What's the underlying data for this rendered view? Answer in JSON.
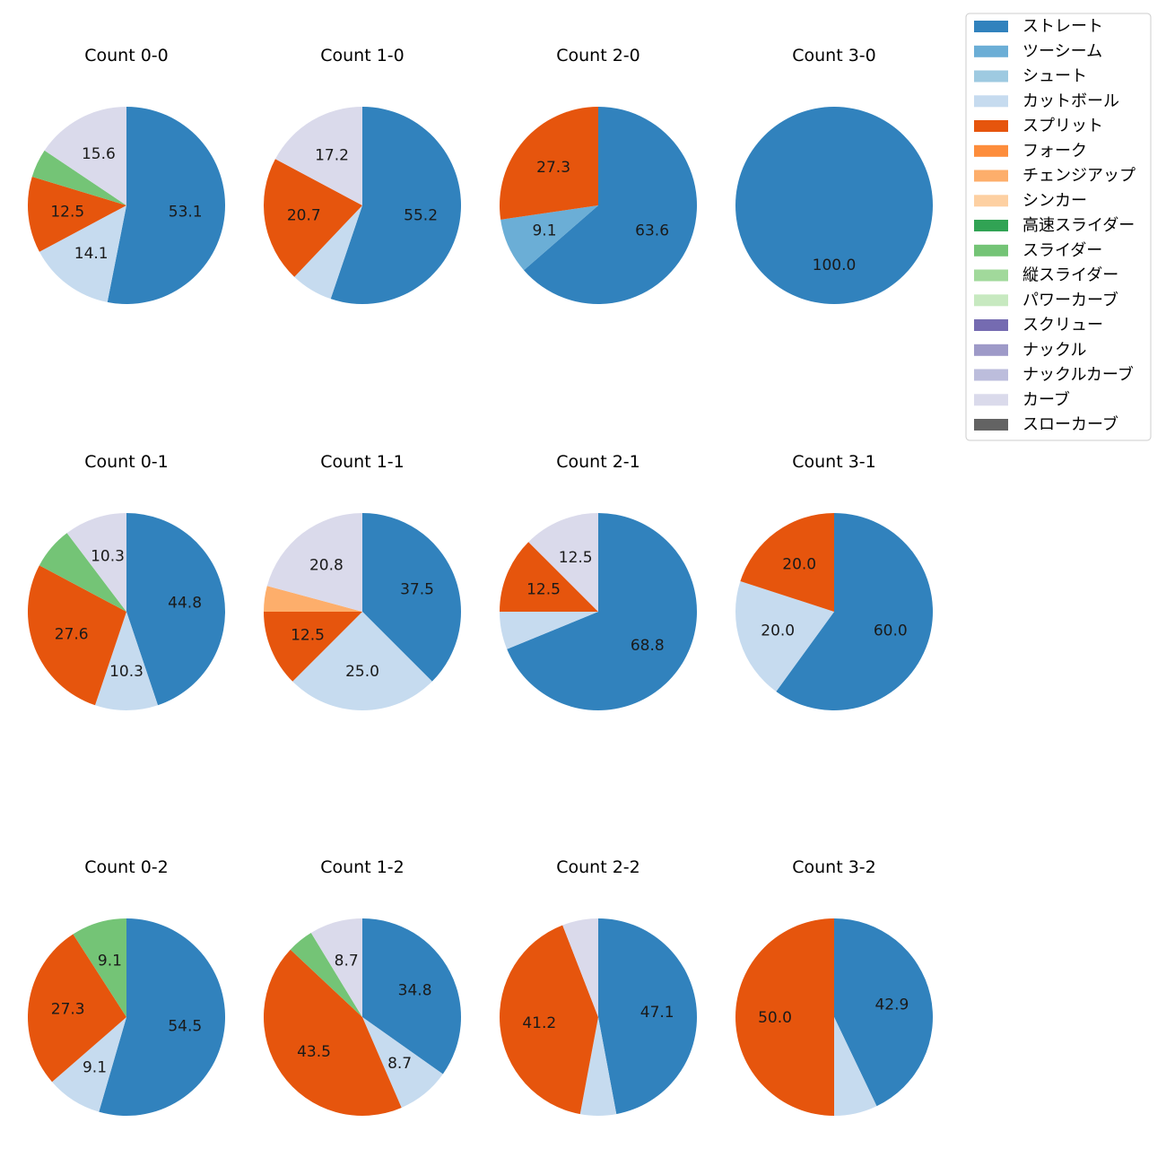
{
  "chart_data": {
    "type": "pie",
    "legend_position": "top-right",
    "legend": [
      {
        "name": "ストレート",
        "color": "#3182bd"
      },
      {
        "name": "ツーシーム",
        "color": "#6baed6"
      },
      {
        "name": "シュート",
        "color": "#9ecae1"
      },
      {
        "name": "カットボール",
        "color": "#c6dbef"
      },
      {
        "name": "スプリット",
        "color": "#e6550d"
      },
      {
        "name": "フォーク",
        "color": "#fd8d3c"
      },
      {
        "name": "チェンジアップ",
        "color": "#fdae6b"
      },
      {
        "name": "シンカー",
        "color": "#fdd0a2"
      },
      {
        "name": "高速スライダー",
        "color": "#31a354"
      },
      {
        "name": "スライダー",
        "color": "#74c476"
      },
      {
        "name": "縦スライダー",
        "color": "#a1d99b"
      },
      {
        "name": "パワーカーブ",
        "color": "#c7e9c0"
      },
      {
        "name": "スクリュー",
        "color": "#756bb1"
      },
      {
        "name": "ナックル",
        "color": "#9e9ac8"
      },
      {
        "name": "ナックルカーブ",
        "color": "#bcbddc"
      },
      {
        "name": "カーブ",
        "color": "#dadaeb"
      },
      {
        "name": "スローカーブ",
        "color": "#636363"
      }
    ],
    "pies": [
      {
        "title": "Count 0-0",
        "slices": [
          {
            "name": "ストレート",
            "value": 53.1,
            "label": "53.1"
          },
          {
            "name": "カットボール",
            "value": 14.1,
            "label": "14.1"
          },
          {
            "name": "スプリット",
            "value": 12.5,
            "label": "12.5"
          },
          {
            "name": "スライダー",
            "value": 4.7,
            "label": ""
          },
          {
            "name": "カーブ",
            "value": 15.6,
            "label": "15.6"
          }
        ]
      },
      {
        "title": "Count 1-0",
        "slices": [
          {
            "name": "ストレート",
            "value": 55.2,
            "label": "55.2"
          },
          {
            "name": "カットボール",
            "value": 6.9,
            "label": ""
          },
          {
            "name": "スプリット",
            "value": 20.7,
            "label": "20.7"
          },
          {
            "name": "カーブ",
            "value": 17.2,
            "label": "17.2"
          }
        ]
      },
      {
        "title": "Count 2-0",
        "slices": [
          {
            "name": "ストレート",
            "value": 63.6,
            "label": "63.6"
          },
          {
            "name": "ツーシーム",
            "value": 9.1,
            "label": "9.1"
          },
          {
            "name": "スプリット",
            "value": 27.3,
            "label": "27.3"
          }
        ]
      },
      {
        "title": "Count 3-0",
        "slices": [
          {
            "name": "ストレート",
            "value": 100.0,
            "label": "100.0"
          }
        ]
      },
      {
        "title": "Count 0-1",
        "slices": [
          {
            "name": "ストレート",
            "value": 44.8,
            "label": "44.8"
          },
          {
            "name": "カットボール",
            "value": 10.3,
            "label": "10.3"
          },
          {
            "name": "スプリット",
            "value": 27.6,
            "label": "27.6"
          },
          {
            "name": "スライダー",
            "value": 6.9,
            "label": ""
          },
          {
            "name": "カーブ",
            "value": 10.3,
            "label": "10.3"
          }
        ]
      },
      {
        "title": "Count 1-1",
        "slices": [
          {
            "name": "ストレート",
            "value": 37.5,
            "label": "37.5"
          },
          {
            "name": "カットボール",
            "value": 25.0,
            "label": "25.0"
          },
          {
            "name": "スプリット",
            "value": 12.5,
            "label": "12.5"
          },
          {
            "name": "チェンジアップ",
            "value": 4.2,
            "label": ""
          },
          {
            "name": "カーブ",
            "value": 20.8,
            "label": "20.8"
          }
        ]
      },
      {
        "title": "Count 2-1",
        "slices": [
          {
            "name": "ストレート",
            "value": 68.8,
            "label": "68.8"
          },
          {
            "name": "カットボール",
            "value": 6.2,
            "label": ""
          },
          {
            "name": "スプリット",
            "value": 12.5,
            "label": "12.5"
          },
          {
            "name": "カーブ",
            "value": 12.5,
            "label": "12.5"
          }
        ]
      },
      {
        "title": "Count 3-1",
        "slices": [
          {
            "name": "ストレート",
            "value": 60.0,
            "label": "60.0"
          },
          {
            "name": "カットボール",
            "value": 20.0,
            "label": "20.0"
          },
          {
            "name": "スプリット",
            "value": 20.0,
            "label": "20.0"
          }
        ]
      },
      {
        "title": "Count 0-2",
        "slices": [
          {
            "name": "ストレート",
            "value": 54.5,
            "label": "54.5"
          },
          {
            "name": "カットボール",
            "value": 9.1,
            "label": "9.1"
          },
          {
            "name": "スプリット",
            "value": 27.3,
            "label": "27.3"
          },
          {
            "name": "スライダー",
            "value": 9.1,
            "label": "9.1"
          }
        ]
      },
      {
        "title": "Count 1-2",
        "slices": [
          {
            "name": "ストレート",
            "value": 34.8,
            "label": "34.8"
          },
          {
            "name": "カットボール",
            "value": 8.7,
            "label": "8.7"
          },
          {
            "name": "スプリット",
            "value": 43.5,
            "label": "43.5"
          },
          {
            "name": "スライダー",
            "value": 4.3,
            "label": ""
          },
          {
            "name": "カーブ",
            "value": 8.7,
            "label": "8.7"
          }
        ]
      },
      {
        "title": "Count 2-2",
        "slices": [
          {
            "name": "ストレート",
            "value": 47.1,
            "label": "47.1"
          },
          {
            "name": "カットボール",
            "value": 5.9,
            "label": ""
          },
          {
            "name": "スプリット",
            "value": 41.2,
            "label": "41.2"
          },
          {
            "name": "カーブ",
            "value": 5.9,
            "label": ""
          }
        ]
      },
      {
        "title": "Count 3-2",
        "slices": [
          {
            "name": "ストレート",
            "value": 42.9,
            "label": "42.9"
          },
          {
            "name": "カットボール",
            "value": 7.1,
            "label": ""
          },
          {
            "name": "スプリット",
            "value": 50.0,
            "label": "50.0"
          }
        ]
      }
    ]
  }
}
